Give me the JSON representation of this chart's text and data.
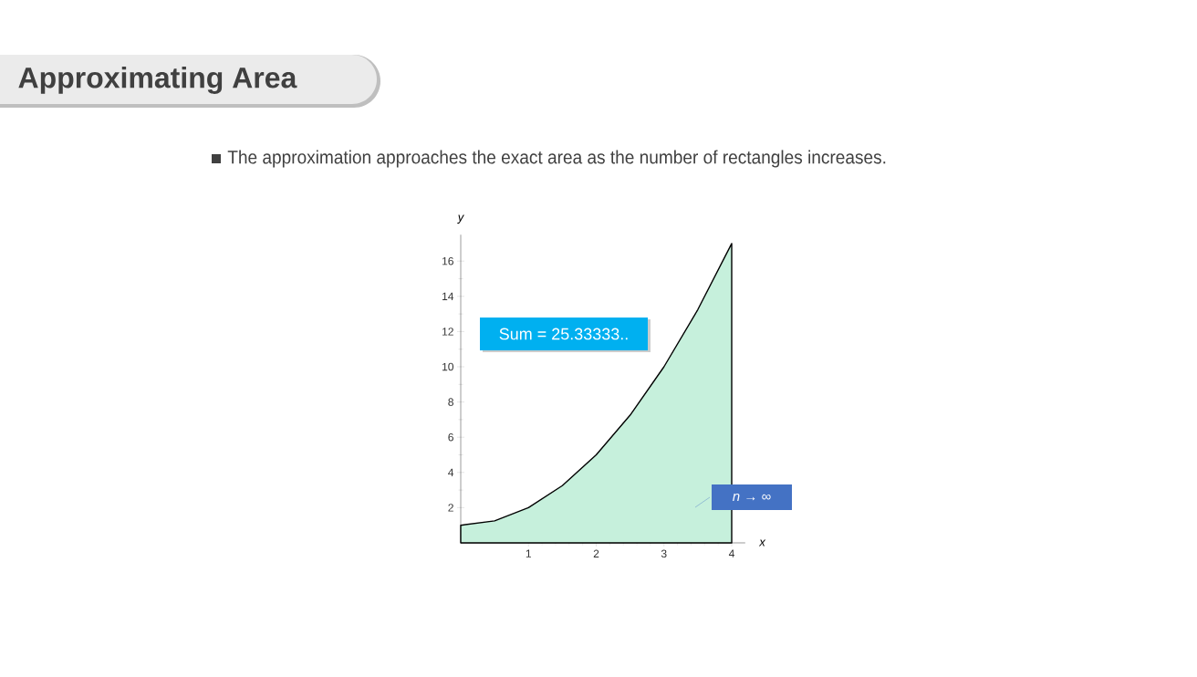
{
  "chart_data": {
    "type": "area",
    "title": "Approximating Area",
    "subtitle": "The approximation approaches the exact area as the number of rectangles increases.",
    "xlabel": "x",
    "ylabel": "y",
    "x": [
      0,
      0.5,
      1,
      1.5,
      2,
      2.5,
      3,
      3.5,
      4
    ],
    "series": [
      {
        "color": "#c6f0dc",
        "values": [
          1,
          1.25,
          2,
          3.25,
          5,
          7.25,
          10,
          13.25,
          17
        ]
      }
    ],
    "xlim": [
      0,
      4.2
    ],
    "ylim": [
      0,
      17.5
    ],
    "xticks": [
      1,
      2,
      3,
      4
    ],
    "yticks": [
      2,
      4,
      6,
      8,
      10,
      12,
      14,
      16
    ],
    "annotations": [
      "Sum = 25.33333..",
      "n → ∞"
    ],
    "grid": false,
    "marker": "none"
  }
}
